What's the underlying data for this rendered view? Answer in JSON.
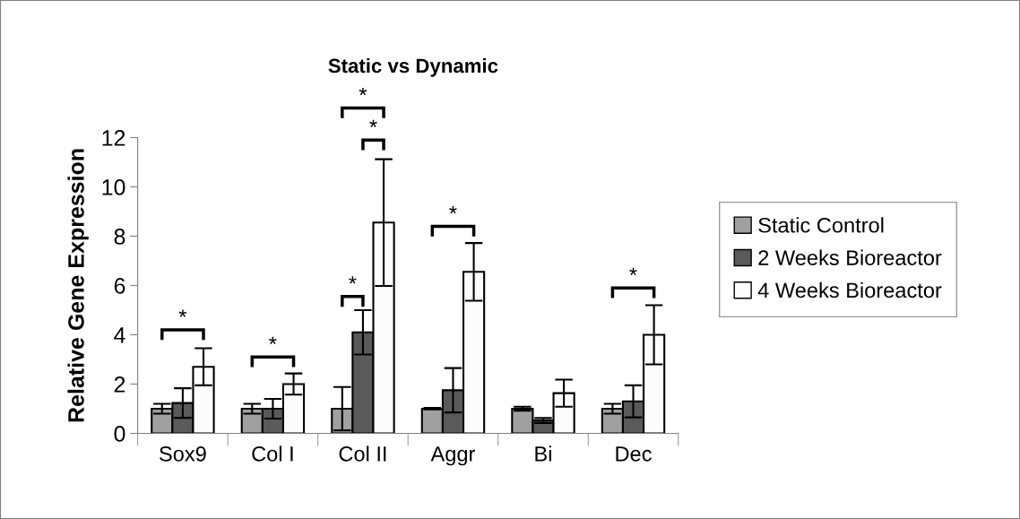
{
  "chart_data": {
    "type": "bar",
    "title": "Static vs Dynamic",
    "ylabel": "Relative Gene Expression",
    "categories": [
      "Sox9",
      "Col I",
      "Col II",
      "Aggr",
      "Bi",
      "Dec"
    ],
    "series": [
      {
        "name": "Static Control",
        "color": "#a0a0a0",
        "values": [
          1.0,
          1.0,
          1.0,
          1.0,
          1.0,
          1.0
        ],
        "errors": [
          0.2,
          0.2,
          0.88,
          0.03,
          0.08,
          0.2
        ]
      },
      {
        "name": "2 Weeks Bioreactor",
        "color": "#5a5a5a",
        "values": [
          1.23,
          1.0,
          4.1,
          1.75,
          0.52,
          1.3
        ],
        "errors": [
          0.6,
          0.4,
          0.9,
          0.9,
          0.1,
          0.65
        ]
      },
      {
        "name": "4 Weeks Bioreactor",
        "color": "#fcfcfc",
        "values": [
          2.7,
          2.0,
          8.55,
          6.55,
          1.63,
          4.0
        ],
        "errors": [
          0.75,
          0.43,
          2.57,
          1.17,
          0.55,
          1.2
        ]
      }
    ],
    "ylim": [
      0,
      12
    ],
    "yticks": [
      0,
      2,
      4,
      6,
      8,
      10,
      12
    ],
    "grid": false,
    "legend": "right",
    "annotations": [
      "*",
      "*",
      "*",
      "*",
      "*",
      "*",
      "*"
    ]
  }
}
